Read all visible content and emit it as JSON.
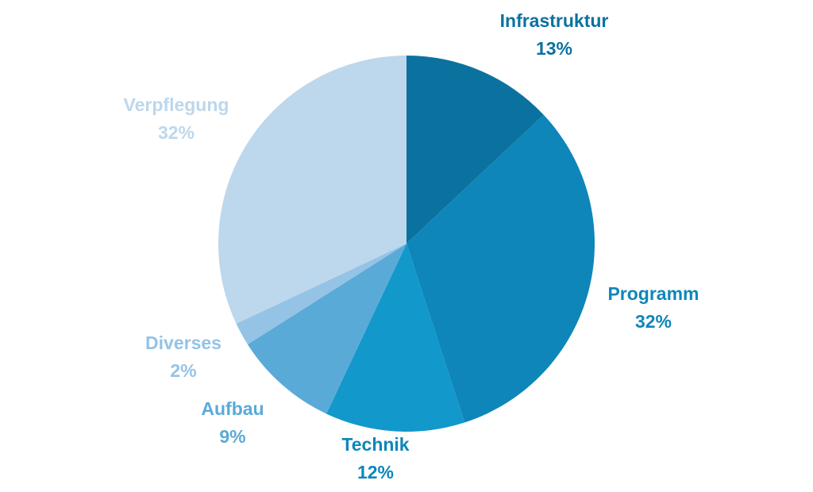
{
  "chart_data": {
    "type": "pie",
    "title": "",
    "start_angle_deg": 0,
    "direction": "clockwise",
    "slices": [
      {
        "label": "Infrastruktur",
        "value": 13,
        "display": "13%",
        "color": "#0b729f",
        "label_color": "#0b729f"
      },
      {
        "label": "Programm",
        "value": 32,
        "display": "32%",
        "color": "#0e86b9",
        "label_color": "#0e86b9"
      },
      {
        "label": "Technik",
        "value": 12,
        "display": "12%",
        "color": "#1298cb",
        "label_color": "#0e86b9"
      },
      {
        "label": "Aufbau",
        "value": 9,
        "display": "9%",
        "color": "#5aaad8",
        "label_color": "#5aaad8"
      },
      {
        "label": "Diverses",
        "value": 2,
        "display": "2%",
        "color": "#94c3e6",
        "label_color": "#94c3e6"
      },
      {
        "label": "Verpflegung",
        "value": 32,
        "display": "32%",
        "color": "#bdd7ec",
        "label_color": "#bdd7ec"
      }
    ]
  }
}
